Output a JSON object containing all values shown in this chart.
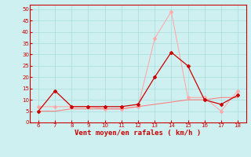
{
  "x": [
    6,
    7,
    8,
    9,
    10,
    11,
    12,
    13,
    14,
    15,
    16,
    17,
    18
  ],
  "line1": [
    5,
    14,
    7,
    7,
    7,
    7,
    8,
    20,
    31,
    25,
    10,
    8,
    12
  ],
  "line2": [
    7,
    7,
    7,
    7,
    6,
    6,
    7,
    37,
    49,
    11,
    11,
    5,
    14
  ],
  "line3": [
    5,
    5,
    6,
    6,
    6,
    6,
    7,
    8,
    9,
    10,
    10,
    11,
    11
  ],
  "color1": "#cc0000",
  "color2": "#ffaaaa",
  "color3": "#ff7777",
  "bg_color": "#cef0f0",
  "grid_color": "#aadddd",
  "xlabel": "Vent moyen/en rafales ( km/h )",
  "xlim": [
    5.5,
    18.5
  ],
  "ylim": [
    0,
    52
  ],
  "xticks": [
    6,
    7,
    8,
    9,
    10,
    11,
    12,
    13,
    14,
    15,
    16,
    17,
    18
  ],
  "yticks": [
    0,
    5,
    10,
    15,
    20,
    25,
    30,
    35,
    40,
    45,
    50
  ]
}
